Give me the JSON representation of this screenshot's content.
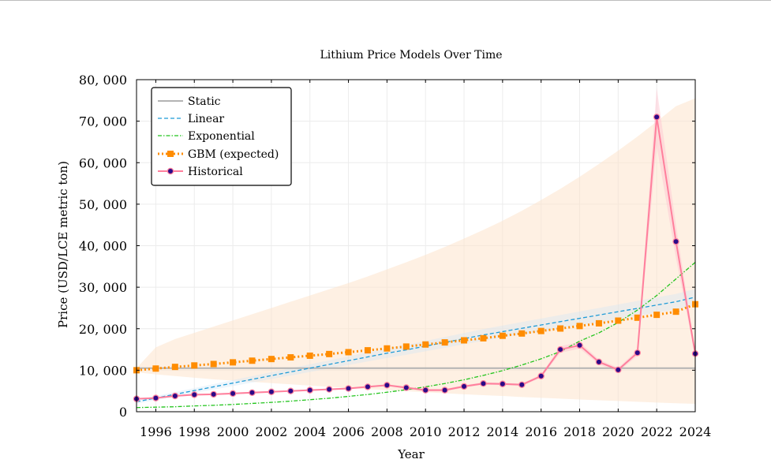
{
  "chart_data": {
    "type": "line",
    "title": "Lithium Price Models Over Time",
    "xlabel": "Year",
    "ylabel": "Price (USD/LCE metric ton)",
    "xlim": [
      1995,
      2024
    ],
    "ylim": [
      0,
      80000
    ],
    "x_ticks": [
      1996,
      1998,
      2000,
      2002,
      2004,
      2006,
      2008,
      2010,
      2012,
      2014,
      2016,
      2018,
      2020,
      2022,
      2024
    ],
    "x_tick_labels": [
      "1996",
      "1998",
      "2000",
      "2002",
      "2004",
      "2006",
      "2008",
      "2010",
      "2012",
      "2014",
      "2016",
      "2018",
      "2020",
      "2022",
      "2024"
    ],
    "y_ticks": [
      0,
      10000,
      20000,
      30000,
      40000,
      50000,
      60000,
      70000,
      80000
    ],
    "y_tick_labels": [
      "0",
      "10, 000",
      "20, 000",
      "30, 000",
      "40, 000",
      "50, 000",
      "60, 000",
      "70, 000",
      "80, 000"
    ],
    "grid": true,
    "legend_position": "top-left",
    "x": [
      1995,
      1996,
      1997,
      1998,
      1999,
      2000,
      2001,
      2002,
      2003,
      2004,
      2005,
      2006,
      2007,
      2008,
      2009,
      2010,
      2011,
      2012,
      2013,
      2014,
      2015,
      2016,
      2017,
      2018,
      2019,
      2020,
      2021,
      2022,
      2023,
      2024
    ],
    "series": [
      {
        "name": "Static",
        "style": "solid",
        "color": "#b3b3b3",
        "values": [
          10500,
          10500,
          10500,
          10500,
          10500,
          10500,
          10500,
          10500,
          10500,
          10500,
          10500,
          10500,
          10500,
          10500,
          10500,
          10500,
          10500,
          10500,
          10500,
          10500,
          10500,
          10500,
          10500,
          10500,
          10500,
          10500,
          10500,
          10500,
          10500,
          10500
        ]
      },
      {
        "name": "Linear",
        "style": "dashed",
        "color": "#1f9bd7",
        "values": [
          2400,
          3300,
          4200,
          5100,
          6000,
          6900,
          7800,
          8700,
          9600,
          10500,
          11400,
          12300,
          13200,
          14100,
          14900,
          15800,
          16700,
          17600,
          18500,
          19300,
          20100,
          20900,
          21700,
          22500,
          23300,
          24100,
          24900,
          25700,
          26500,
          27600
        ]
      },
      {
        "name": "Exponential",
        "style": "dashdot",
        "color": "#22c41c",
        "values": [
          1000,
          1100,
          1200,
          1400,
          1550,
          1750,
          2000,
          2250,
          2550,
          2900,
          3250,
          3700,
          4150,
          4700,
          5300,
          6000,
          6800,
          7700,
          8750,
          9900,
          11250,
          12750,
          14500,
          17000,
          19000,
          21500,
          24500,
          28000,
          32000,
          36000
        ]
      },
      {
        "name": "GBM (expected)",
        "style": "dotted-marker",
        "color": "#ff8c00",
        "values": [
          10000,
          10400,
          10800,
          11150,
          11500,
          11900,
          12300,
          12700,
          13100,
          13500,
          13900,
          14350,
          14800,
          15250,
          15700,
          16200,
          16700,
          17200,
          17700,
          18300,
          18850,
          19450,
          20050,
          20650,
          21300,
          21950,
          22650,
          23350,
          24100,
          25900
        ],
        "band_lower": [
          9500,
          9000,
          8600,
          8200,
          7800,
          7500,
          7200,
          6900,
          6600,
          6300,
          6000,
          5700,
          5450,
          5200,
          4950,
          4700,
          4450,
          4200,
          4000,
          3800,
          3550,
          3350,
          3150,
          2950,
          2750,
          2600,
          2400,
          2200,
          2050,
          1900
        ],
        "band_upper": [
          10500,
          15500,
          17500,
          19000,
          20500,
          22000,
          23500,
          25000,
          26500,
          28000,
          29500,
          31000,
          32600,
          34300,
          36000,
          37800,
          39700,
          41700,
          43800,
          46000,
          48400,
          51000,
          53700,
          56600,
          59700,
          62900,
          66300,
          69900,
          73600,
          75500
        ]
      },
      {
        "name": "Historical",
        "style": "solid-marker",
        "color": "#ff7f9c",
        "marker_color": "#2b0a88",
        "values": [
          3100,
          3300,
          3800,
          4100,
          4200,
          4400,
          4600,
          4800,
          5000,
          5200,
          5400,
          5600,
          6000,
          6400,
          5800,
          5200,
          5200,
          6100,
          6800,
          6700,
          6500,
          8600,
          15000,
          16000,
          12000,
          10100,
          14200,
          71000,
          41000,
          14000
        ],
        "band_lower": [
          2900,
          3100,
          3600,
          3900,
          4000,
          4200,
          4400,
          4600,
          4800,
          5000,
          5200,
          5400,
          5800,
          6200,
          5500,
          4900,
          4900,
          5800,
          6500,
          6400,
          6200,
          8200,
          14200,
          15200,
          11400,
          9600,
          13500,
          64000,
          37000,
          13200
        ],
        "band_upper": [
          3300,
          3500,
          4000,
          4300,
          4400,
          4600,
          4800,
          5000,
          5200,
          5400,
          5600,
          5800,
          6200,
          6600,
          6100,
          5500,
          5500,
          6400,
          7100,
          7000,
          6800,
          9000,
          15800,
          16800,
          12600,
          10600,
          14900,
          78000,
          45000,
          14800
        ]
      }
    ]
  }
}
